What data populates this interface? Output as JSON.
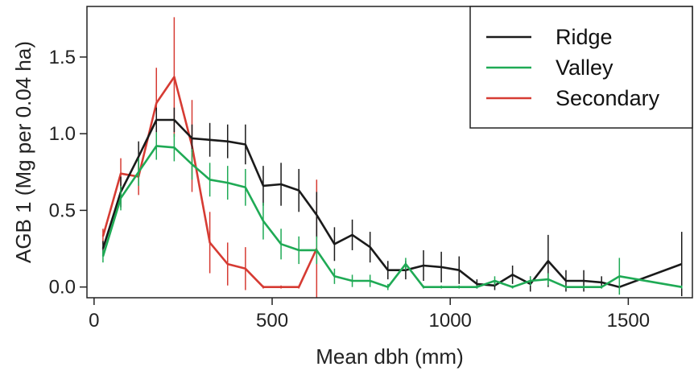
{
  "chart_data": {
    "type": "line",
    "xlabel": "Mean dbh (mm)",
    "ylabel": "AGB 1 (Mg per 0.04 ha)",
    "xlim": [
      -20,
      1680
    ],
    "ylim": [
      -0.07,
      1.83
    ],
    "xticks": [
      0,
      500,
      1000,
      1500
    ],
    "xtick_labels": [
      "0",
      "500",
      "1000",
      "1500"
    ],
    "yticks": [
      0.0,
      0.5,
      1.0,
      1.5
    ],
    "ytick_labels": [
      "0.0",
      "0.5",
      "1.0",
      "1.5"
    ],
    "grid": false,
    "legend_position": "top-right",
    "series": [
      {
        "name": "Ridge",
        "color": "#1a1a1a",
        "x": [
          25,
          75,
          125,
          175,
          225,
          275,
          325,
          375,
          425,
          475,
          525,
          575,
          625,
          675,
          725,
          775,
          825,
          875,
          925,
          975,
          1025,
          1075,
          1125,
          1175,
          1225,
          1275,
          1325,
          1375,
          1425,
          1475,
          1650
        ],
        "y": [
          0.25,
          0.62,
          0.85,
          1.09,
          1.09,
          0.97,
          0.96,
          0.95,
          0.93,
          0.66,
          0.67,
          0.63,
          0.47,
          0.28,
          0.34,
          0.26,
          0.11,
          0.11,
          0.14,
          0.13,
          0.11,
          0.02,
          0.01,
          0.08,
          0.02,
          0.17,
          0.04,
          0.04,
          0.03,
          0.0,
          0.15
        ],
        "err": [
          0.05,
          0.1,
          0.1,
          0.08,
          0.08,
          0.09,
          0.11,
          0.11,
          0.13,
          0.13,
          0.14,
          0.14,
          0.15,
          0.11,
          0.1,
          0.1,
          0.06,
          0.06,
          0.1,
          0.1,
          0.09,
          0.03,
          0.03,
          0.06,
          0.05,
          0.17,
          0.07,
          0.07,
          0.04,
          0.01,
          0.21
        ]
      },
      {
        "name": "Valley",
        "color": "#1faa55",
        "x": [
          25,
          75,
          125,
          175,
          225,
          275,
          325,
          375,
          425,
          475,
          525,
          575,
          625,
          675,
          725,
          775,
          825,
          875,
          925,
          975,
          1025,
          1075,
          1125,
          1175,
          1225,
          1275,
          1325,
          1375,
          1425,
          1475,
          1650
        ],
        "y": [
          0.2,
          0.58,
          0.75,
          0.92,
          0.91,
          0.8,
          0.7,
          0.68,
          0.65,
          0.43,
          0.28,
          0.24,
          0.24,
          0.07,
          0.04,
          0.04,
          0.0,
          0.15,
          0.0,
          0.0,
          0.0,
          0.0,
          0.04,
          0.0,
          0.04,
          0.05,
          0.0,
          0.0,
          0.0,
          0.07,
          0.0
        ],
        "err": [
          0.04,
          0.08,
          0.09,
          0.09,
          0.09,
          0.1,
          0.11,
          0.11,
          0.12,
          0.12,
          0.1,
          0.09,
          0.09,
          0.05,
          0.04,
          0.04,
          0.02,
          0.04,
          0.01,
          0.01,
          0.01,
          0.01,
          0.03,
          0.01,
          0.03,
          0.04,
          0.01,
          0.01,
          0.01,
          0.12,
          0.01
        ]
      },
      {
        "name": "Secondary",
        "color": "#d63b33",
        "x": [
          25,
          75,
          125,
          175,
          225,
          275,
          325,
          375,
          425,
          475,
          525,
          575,
          625
        ],
        "y": [
          0.33,
          0.74,
          0.72,
          1.2,
          1.37,
          0.92,
          0.29,
          0.15,
          0.12,
          0.0,
          0.0,
          0.0,
          0.25
        ],
        "err": [
          0.05,
          0.1,
          0.12,
          0.23,
          0.39,
          0.3,
          0.2,
          0.14,
          0.14,
          0.01,
          0.01,
          0.01,
          0.45
        ]
      }
    ]
  }
}
